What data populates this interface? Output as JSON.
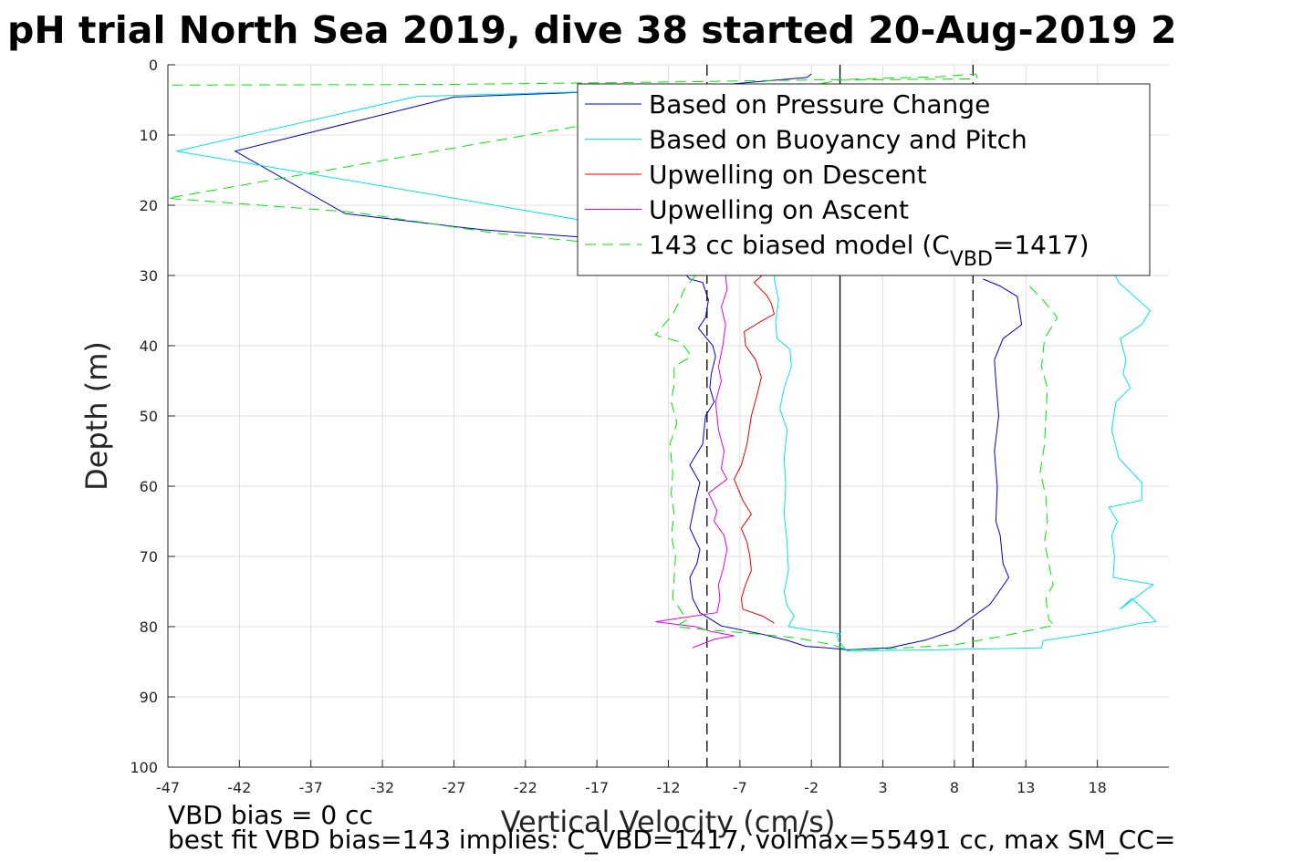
{
  "chart_data": {
    "type": "line",
    "title": "pH trial North Sea 2019, dive 38 started 20-Aug-2019 2",
    "xlabel": "Vertical Velocity (cm/s)",
    "ylabel": "Depth (m)",
    "xlim": [
      -47,
      23
    ],
    "ylim": [
      0,
      100
    ],
    "y_reversed": true,
    "grid": true,
    "legend_position": "top-right",
    "x_ticks": [
      -47,
      -42,
      -37,
      -32,
      -27,
      -22,
      -17,
      -12,
      -7,
      -2,
      3,
      8,
      13,
      18
    ],
    "y_ticks": [
      0,
      10,
      20,
      30,
      40,
      50,
      60,
      70,
      80,
      90,
      100
    ],
    "reference_lines": [
      {
        "x": 0,
        "style": "solid",
        "color": "#000000"
      },
      {
        "x": -9.3,
        "style": "dashed",
        "color": "#000000"
      },
      {
        "x": 9.3,
        "style": "dashed",
        "color": "#000000"
      }
    ],
    "series": [
      {
        "name": "Based on Pressure Change",
        "color": "#0000cc",
        "dash": "solid",
        "points": [
          [
            -2,
            1.3
          ],
          [
            -2.3,
            1.8
          ],
          [
            -8,
            2.8
          ],
          [
            -19,
            4
          ],
          [
            -27,
            4.6
          ],
          [
            -42.3,
            12.3
          ],
          [
            -34.6,
            21.2
          ],
          [
            -25,
            23.5
          ],
          [
            -17,
            24.7
          ],
          [
            -12,
            25.6
          ],
          [
            -11.6,
            27
          ],
          [
            -11.2,
            29
          ],
          [
            -10.5,
            30.5
          ],
          [
            -9.6,
            31
          ],
          [
            -9.2,
            33.5
          ],
          [
            -9.4,
            36
          ],
          [
            -9.9,
            37.5
          ],
          [
            -8.9,
            40
          ],
          [
            -8.7,
            41.5
          ],
          [
            -9,
            44
          ],
          [
            -9.1,
            46
          ],
          [
            -8.8,
            48
          ],
          [
            -9.4,
            50
          ],
          [
            -9.6,
            54
          ],
          [
            -10.5,
            57
          ],
          [
            -9.8,
            59.5
          ],
          [
            -10.1,
            62
          ],
          [
            -10.5,
            66
          ],
          [
            -9.8,
            69
          ],
          [
            -10,
            71
          ],
          [
            -10.5,
            73
          ],
          [
            -10.3,
            76
          ],
          [
            -9.8,
            78
          ],
          [
            -8.3,
            79.9
          ],
          [
            -5.6,
            81
          ],
          [
            -3.6,
            82
          ],
          [
            -2.4,
            82.8
          ],
          [
            -1,
            83
          ],
          [
            0.5,
            83.3
          ],
          [
            3.5,
            83
          ],
          [
            6,
            81.9
          ],
          [
            8,
            80.5
          ],
          [
            9,
            79
          ],
          [
            10.5,
            76.8
          ],
          [
            11.3,
            74.5
          ],
          [
            11.8,
            73
          ],
          [
            11.4,
            71
          ],
          [
            11.2,
            67
          ],
          [
            10.9,
            65
          ],
          [
            11,
            60
          ],
          [
            10.8,
            55
          ],
          [
            11.1,
            50
          ],
          [
            10.9,
            45
          ],
          [
            10.8,
            42
          ],
          [
            11.4,
            39
          ],
          [
            12.7,
            37
          ],
          [
            12.4,
            33
          ],
          [
            11.2,
            31.5
          ],
          [
            10,
            30.5
          ]
        ]
      },
      {
        "name": "Based on Buoyancy and Pitch",
        "color": "#00e5e5",
        "dash": "solid",
        "points": [
          [
            -6,
            3.2
          ],
          [
            -29.6,
            4.5
          ],
          [
            -46.4,
            12.3
          ],
          [
            -27,
            19
          ],
          [
            -17,
            22.5
          ],
          [
            -11,
            24.3
          ],
          [
            -4.5,
            29
          ],
          [
            -4.6,
            30.5
          ],
          [
            -4.3,
            33.5
          ],
          [
            -4.5,
            36.5
          ],
          [
            -4.4,
            39
          ],
          [
            -3.5,
            40.5
          ],
          [
            -3.4,
            43
          ],
          [
            -3.9,
            46
          ],
          [
            -4.2,
            49
          ],
          [
            -3.7,
            52
          ],
          [
            -3.9,
            56
          ],
          [
            -3.8,
            60
          ],
          [
            -3.9,
            64
          ],
          [
            -3.7,
            68
          ],
          [
            -3.6,
            72
          ],
          [
            -3.9,
            75
          ],
          [
            -3.7,
            77
          ],
          [
            -3.2,
            78.5
          ],
          [
            -3.6,
            80
          ],
          [
            -2,
            80.5
          ],
          [
            0,
            81
          ],
          [
            -0.2,
            81.3
          ],
          [
            -0.1,
            82
          ],
          [
            0.5,
            83.5
          ],
          [
            12,
            83.1
          ],
          [
            14.1,
            83
          ],
          [
            14.2,
            82
          ],
          [
            18,
            80.8
          ],
          [
            21,
            79.5
          ],
          [
            22.1,
            79.3
          ],
          [
            21.5,
            78
          ],
          [
            20.4,
            76
          ],
          [
            19.6,
            77.5
          ],
          [
            20.9,
            75.5
          ],
          [
            21.9,
            74
          ],
          [
            19.1,
            73
          ],
          [
            19.2,
            70
          ],
          [
            19,
            67
          ],
          [
            19.4,
            65
          ],
          [
            18.8,
            63
          ],
          [
            21.1,
            62
          ],
          [
            21.1,
            59.5
          ],
          [
            19.5,
            56
          ],
          [
            19,
            52
          ],
          [
            19.3,
            48
          ],
          [
            20.3,
            46
          ],
          [
            19.8,
            44
          ],
          [
            20,
            42
          ],
          [
            19.6,
            39
          ],
          [
            21.1,
            37
          ],
          [
            21.7,
            35
          ],
          [
            19.5,
            31
          ],
          [
            19,
            29
          ]
        ]
      },
      {
        "name": "Upwelling on Descent",
        "color": "#e50000",
        "dash": "solid",
        "points": [
          [
            -5.4,
            29.9
          ],
          [
            -6,
            31
          ],
          [
            -5.1,
            32.9
          ],
          [
            -4.8,
            34
          ],
          [
            -4.6,
            35.5
          ],
          [
            -5.5,
            36.5
          ],
          [
            -6.7,
            38
          ],
          [
            -6.6,
            40
          ],
          [
            -5.9,
            42
          ],
          [
            -5.5,
            44.5
          ],
          [
            -5.8,
            47
          ],
          [
            -6.2,
            50
          ],
          [
            -6.5,
            54
          ],
          [
            -6.9,
            57
          ],
          [
            -7.4,
            59
          ],
          [
            -6.8,
            62
          ],
          [
            -6.2,
            64
          ],
          [
            -6.9,
            66
          ],
          [
            -6.5,
            68
          ],
          [
            -6.3,
            70
          ],
          [
            -6.2,
            72
          ],
          [
            -6.6,
            74
          ],
          [
            -6.9,
            76
          ],
          [
            -6.8,
            77.5
          ],
          [
            -5.4,
            78.5
          ],
          [
            -4.6,
            79.5
          ]
        ]
      },
      {
        "name": "Upwelling on Ascent",
        "color": "#e500e5",
        "dash": "solid",
        "points": [
          [
            -8,
            30
          ],
          [
            -7.9,
            32
          ],
          [
            -8.3,
            34.5
          ],
          [
            -8,
            37
          ],
          [
            -8.2,
            40
          ],
          [
            -8.5,
            43
          ],
          [
            -8.3,
            45
          ],
          [
            -8.7,
            48
          ],
          [
            -8.5,
            52
          ],
          [
            -8.1,
            55
          ],
          [
            -8.3,
            57.5
          ],
          [
            -7.9,
            59
          ],
          [
            -9.2,
            61
          ],
          [
            -8.6,
            63.5
          ],
          [
            -8.8,
            65
          ],
          [
            -8.1,
            67
          ],
          [
            -7.9,
            69
          ],
          [
            -8.2,
            72
          ],
          [
            -8.5,
            74
          ],
          [
            -8.4,
            76
          ],
          [
            -8.6,
            78
          ],
          [
            -12.9,
            79.3
          ],
          [
            -10.1,
            80
          ],
          [
            -9,
            80.7
          ],
          [
            -7.4,
            81.3
          ],
          [
            -8.8,
            81.8
          ],
          [
            -10.3,
            83
          ]
        ]
      },
      {
        "name": "143 cc biased model (C",
        "name_sub": "VBD",
        "name_tail": "=1417)",
        "color": "#00e600",
        "dash": "dashed",
        "points": [
          [
            -46.7,
            2.9
          ],
          [
            -28,
            2.8
          ],
          [
            -14,
            2.5
          ],
          [
            0,
            2.1
          ],
          [
            7,
            1.7
          ],
          [
            9.5,
            1.3
          ],
          [
            9.6,
            1.8
          ],
          [
            9.3,
            2
          ],
          [
            0,
            2.2
          ],
          [
            -47,
            19
          ],
          [
            -34,
            21
          ],
          [
            -24,
            24
          ],
          [
            -15,
            25.8
          ],
          [
            -11,
            27.4
          ],
          [
            -10.1,
            30
          ],
          [
            -10.9,
            32
          ],
          [
            -11.3,
            34
          ],
          [
            -11.7,
            35.5
          ],
          [
            -12.3,
            37
          ],
          [
            -12.9,
            38.5
          ],
          [
            -11.1,
            39.5
          ],
          [
            -10.4,
            41.5
          ],
          [
            -11.6,
            43
          ],
          [
            -11.6,
            45.5
          ],
          [
            -11.8,
            48
          ],
          [
            -11.4,
            51
          ],
          [
            -11.9,
            54
          ],
          [
            -11.7,
            58
          ],
          [
            -11.8,
            61
          ],
          [
            -11.6,
            64
          ],
          [
            -11.8,
            67
          ],
          [
            -11.5,
            70
          ],
          [
            -11.6,
            73
          ],
          [
            -11.7,
            76
          ],
          [
            -10.7,
            79
          ],
          [
            -11.5,
            80
          ],
          [
            -9,
            80.5
          ],
          [
            -6,
            81
          ],
          [
            -3,
            81.6
          ],
          [
            -0.5,
            82.6
          ],
          [
            0.5,
            83.3
          ],
          [
            3,
            83.2
          ],
          [
            8,
            82.6
          ],
          [
            11,
            81.5
          ],
          [
            15,
            79.8
          ],
          [
            14.6,
            79
          ],
          [
            14.4,
            76
          ],
          [
            14.9,
            74
          ],
          [
            14.6,
            71
          ],
          [
            14.3,
            68
          ],
          [
            14.5,
            65
          ],
          [
            14.4,
            61.5
          ],
          [
            14,
            58
          ],
          [
            14.3,
            54
          ],
          [
            14.4,
            50
          ],
          [
            14.5,
            46
          ],
          [
            14.1,
            43
          ],
          [
            14.3,
            39
          ],
          [
            15.2,
            36
          ],
          [
            14.2,
            33.5
          ],
          [
            13,
            31
          ]
        ]
      }
    ]
  },
  "footer": {
    "line1": "VBD bias = 0 cc",
    "line2": "best fit VBD bias=143 implies: C_VBD=1417, volmax=55491 cc, max SM_CC="
  }
}
